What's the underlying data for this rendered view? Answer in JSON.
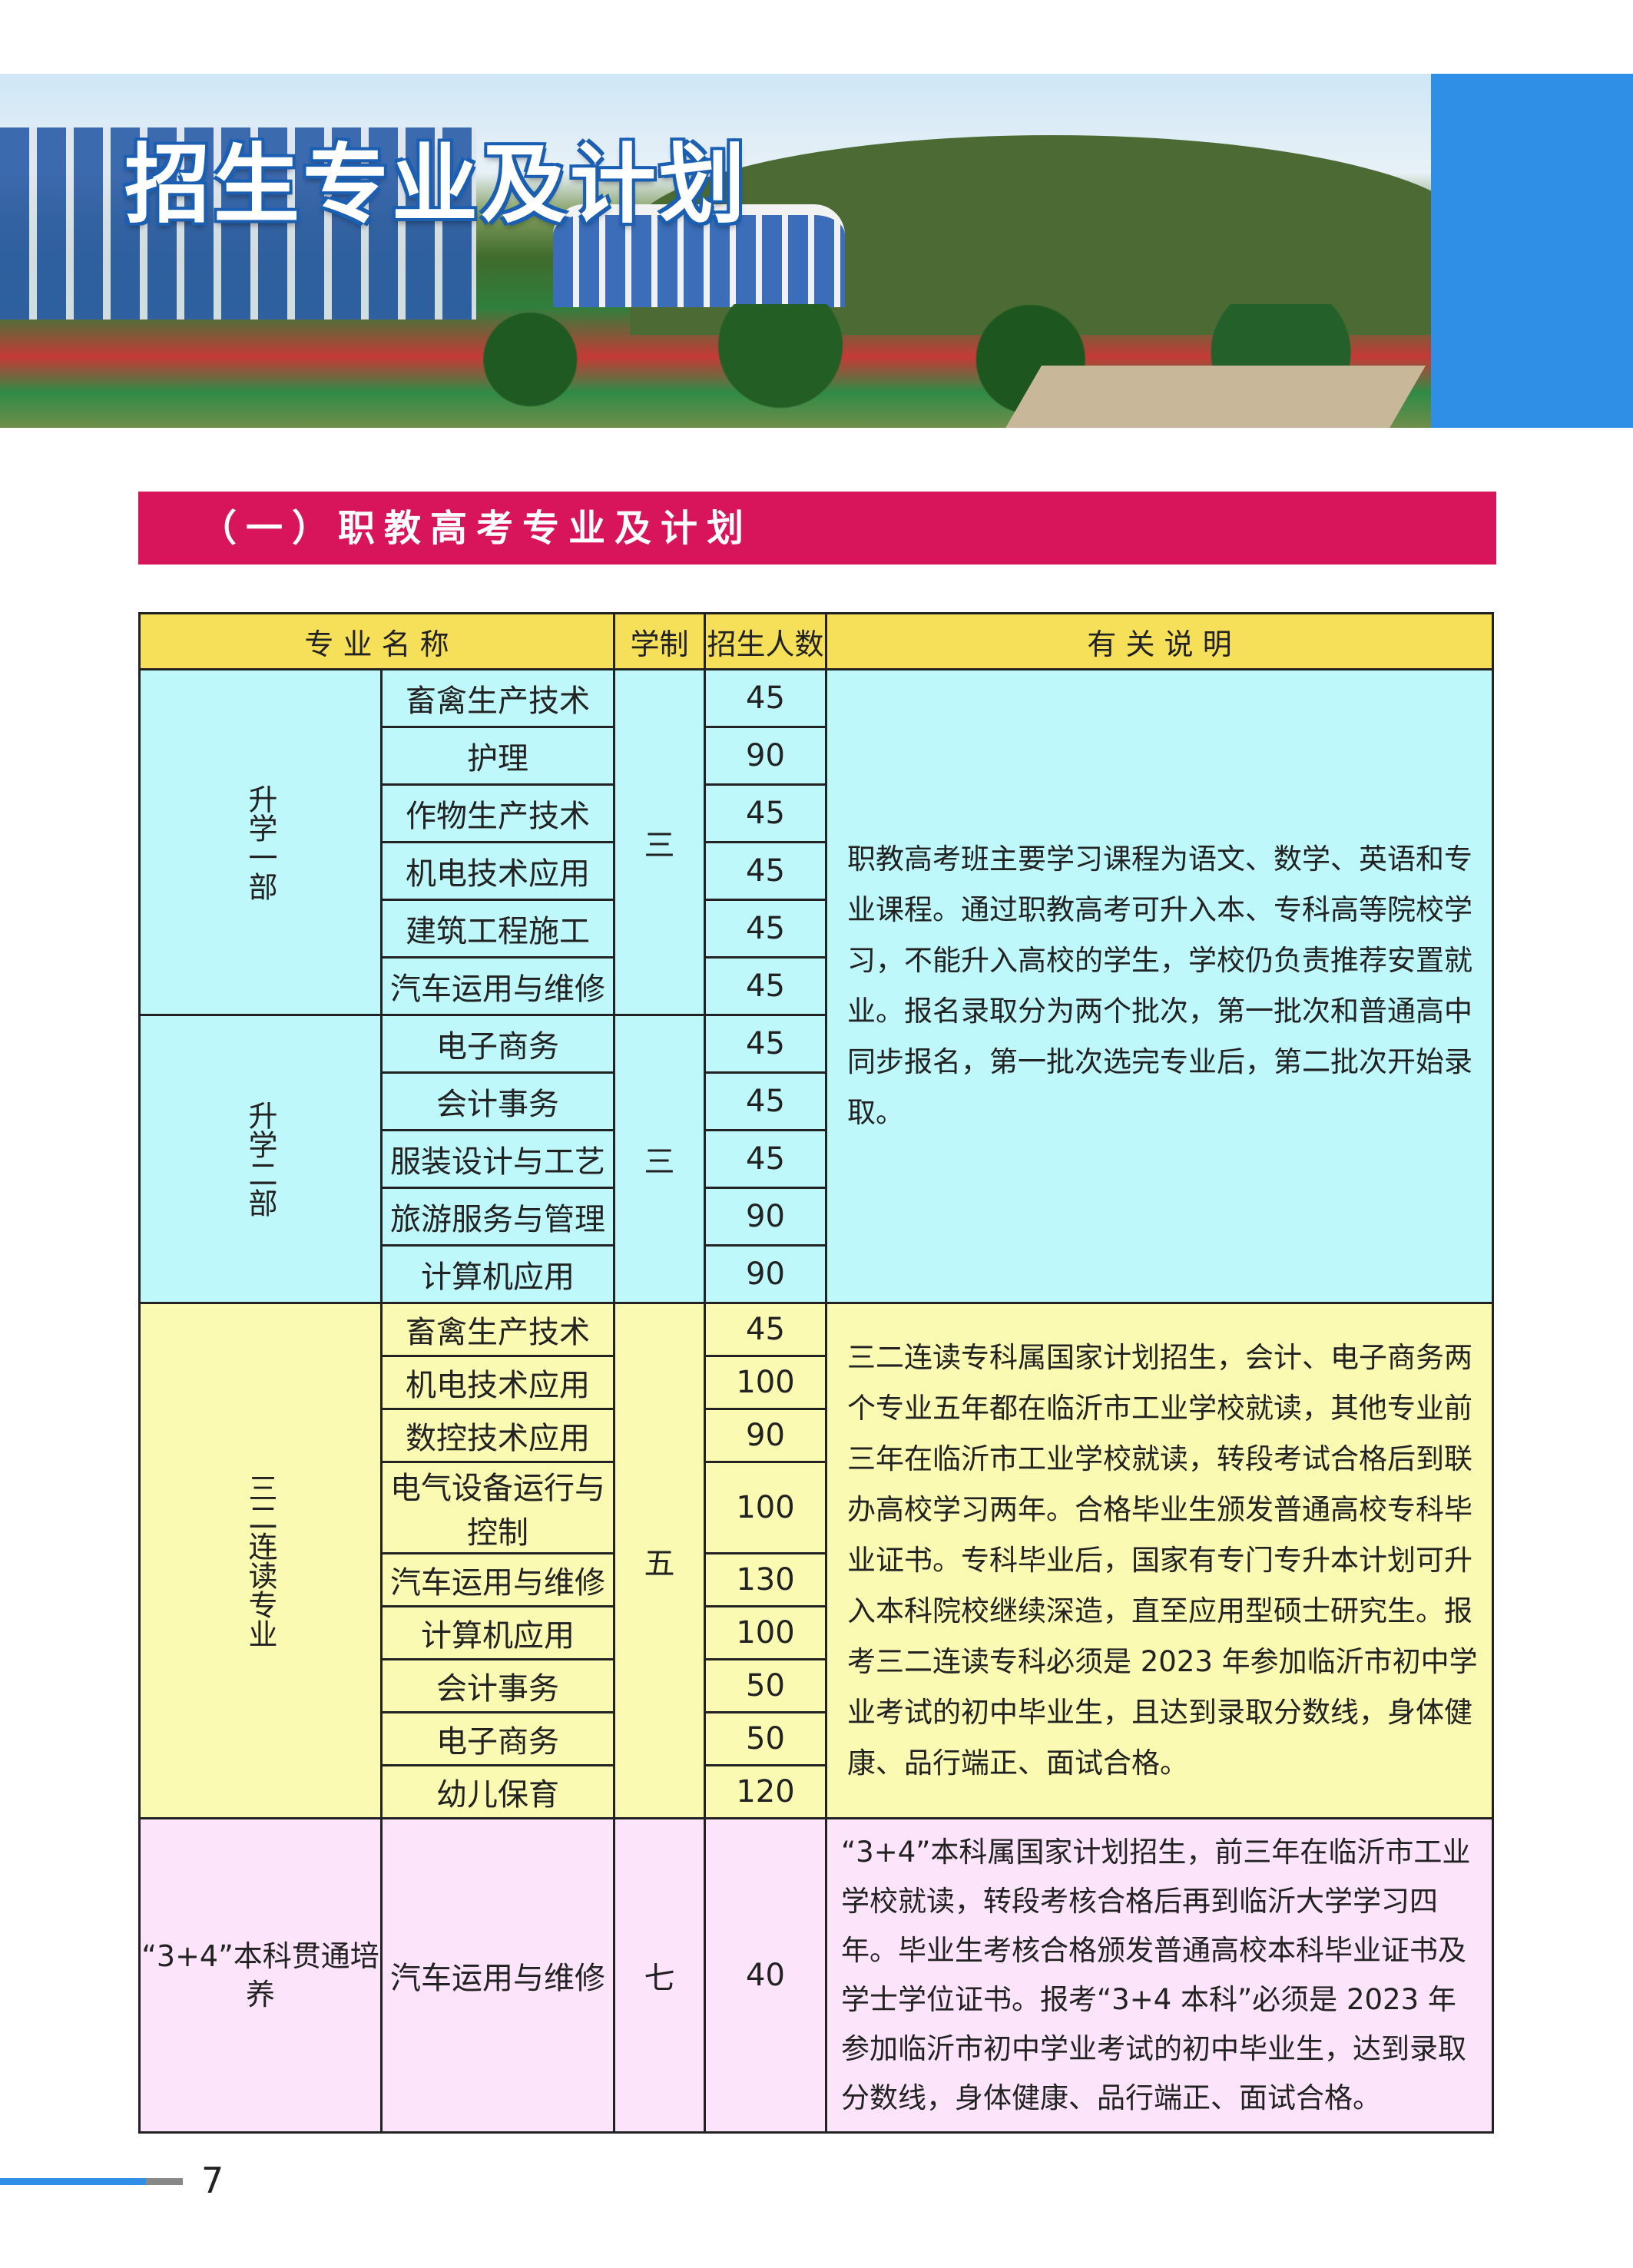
{
  "header": {
    "title": "招生专业及计划"
  },
  "section": {
    "title": "（一）职教高考专业及计划"
  },
  "table": {
    "headers": [
      "专 业 名 称",
      "学制",
      "招生人数",
      "有 关 说 明"
    ],
    "groups": [
      {
        "name": "升学一部",
        "duration": "三",
        "note_group": 0,
        "rows": [
          [
            "畜禽生产技术",
            "45"
          ],
          [
            "护理",
            "90"
          ],
          [
            "作物生产技术",
            "45"
          ],
          [
            "机电技术应用",
            "45"
          ],
          [
            "建筑工程施工",
            "45"
          ],
          [
            "汽车运用与维修",
            "45"
          ]
        ]
      },
      {
        "name": "升学二部",
        "duration": "三",
        "note_group": 0,
        "rows": [
          [
            "电子商务",
            "45"
          ],
          [
            "会计事务",
            "45"
          ],
          [
            "服装设计与工艺",
            "45"
          ],
          [
            "旅游服务与管理",
            "90"
          ],
          [
            "计算机应用",
            "90"
          ]
        ]
      },
      {
        "name": "三二连读专业",
        "duration": "五",
        "note_group": 1,
        "rows": [
          [
            "畜禽生产技术",
            "45"
          ],
          [
            "机电技术应用",
            "100"
          ],
          [
            "数控技术应用",
            "90"
          ],
          [
            "电气设备运行与控制",
            "100"
          ],
          [
            "汽车运用与维修",
            "130"
          ],
          [
            "计算机应用",
            "100"
          ],
          [
            "会计事务",
            "50"
          ],
          [
            "电子商务",
            "50"
          ],
          [
            "幼儿保育",
            "120"
          ]
        ]
      },
      {
        "name": "“3+4”本科贯通培养",
        "duration": "七",
        "note_group": 2,
        "rows": [
          [
            "汽车运用与维修",
            "40"
          ]
        ]
      }
    ],
    "notes": [
      "职教高考班主要学习课程为语文、数学、英语和专业课程。通过职教高考可升入本、专科高等院校学习，不能升入高校的学生，学校仍负责推荐安置就业。报名录取分为两个批次，第一批次和普通高中同步报名，第一批次选完专业后，第二批次开始录取。",
      "三二连读专科属国家计划招生，会计、电子商务两个专业五年都在临沂市工业学校就读，其他专业前三年在临沂市工业学校就读，转段考试合格后到联办高校学习两年。合格毕业生颁发普通高校专科毕业证书。专科毕业后，国家有专门专升本计划可升入本科院校继续深造，直至应用型硕士研究生。报考三二连读专科必须是 2023 年参加临沂市初中学业考试的初中毕业生，且达到录取分数线，身体健康、品行端正、面试合格。",
      "“3+4”本科属国家计划招生，前三年在临沂市工业学校就读，转段考核合格后再到临沂大学学习四年。毕业生考核合格颁发普通高校本科毕业证书及学士学位证书。报考“3+4 本科”必须是 2023 年参加临沂市初中学业考试的初中毕业生，达到录取分数线，身体健康、品行端正、面试合格。"
    ]
  },
  "footer": {
    "page_number": "7"
  },
  "colors": {
    "accent_blue": "#2f8fe6",
    "section_bar": "#d8145b",
    "header_row": "#f6e05a",
    "group_cyan": "#bff8fb",
    "group_yellow": "#fbfab2",
    "group_pink": "#fce4fb"
  }
}
